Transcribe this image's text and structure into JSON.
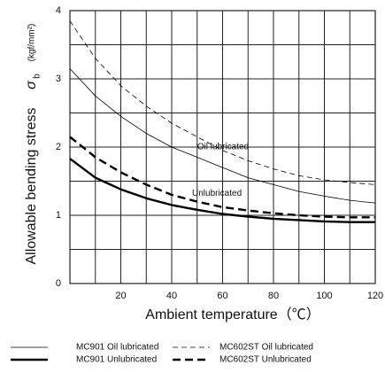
{
  "chart_data": {
    "type": "line",
    "y_label": "Allowable bending stress",
    "y_symbol": "σ",
    "y_symbol_sub": "b",
    "y_unit": "(kgf/mm²)",
    "x_label": "Ambient temperature（℃）",
    "x": [
      0,
      10,
      20,
      30,
      40,
      50,
      60,
      70,
      80,
      90,
      100,
      110,
      120
    ],
    "series": [
      {
        "name": "MC901 Oil lubricated",
        "color": "#000000",
        "style": "solid",
        "width": 0.8,
        "values": [
          3.15,
          2.75,
          2.45,
          2.2,
          2.0,
          1.85,
          1.7,
          1.55,
          1.45,
          1.35,
          1.28,
          1.22,
          1.18
        ]
      },
      {
        "name": "MC901 Unlubricated",
        "color": "#000000",
        "style": "solid",
        "width": 2.4,
        "values": [
          1.83,
          1.55,
          1.38,
          1.25,
          1.15,
          1.08,
          1.02,
          0.98,
          0.95,
          0.93,
          0.91,
          0.9,
          0.9
        ]
      },
      {
        "name": "MC602ST Oil lubricated",
        "color": "#000000",
        "style": "dashed",
        "width": 0.8,
        "values": [
          3.85,
          3.3,
          2.9,
          2.6,
          2.35,
          2.15,
          1.95,
          1.8,
          1.68,
          1.58,
          1.52,
          1.48,
          1.45
        ]
      },
      {
        "name": "MC602ST Unlubricated",
        "color": "#000000",
        "style": "dashed",
        "width": 2.4,
        "values": [
          2.15,
          1.85,
          1.63,
          1.45,
          1.3,
          1.2,
          1.12,
          1.07,
          1.03,
          1.0,
          0.98,
          0.97,
          0.97
        ]
      }
    ],
    "annotations": [
      {
        "text": "Oil lubricated",
        "x": 50,
        "y": 2.0
      },
      {
        "text": "Unlubricated",
        "x": 48,
        "y": 1.32
      }
    ],
    "xlim": [
      0,
      120
    ],
    "ylim": [
      0,
      4
    ],
    "xticks": [
      20,
      40,
      60,
      80,
      100,
      120
    ],
    "x_minor_ticks": [
      10,
      30,
      50,
      70,
      90,
      110
    ],
    "yticks": [
      0,
      1,
      2,
      3,
      4
    ],
    "y_minor_ticks": [
      0.5,
      1.5,
      2.5,
      3.5
    ],
    "grid": true,
    "legend": "bottom"
  }
}
